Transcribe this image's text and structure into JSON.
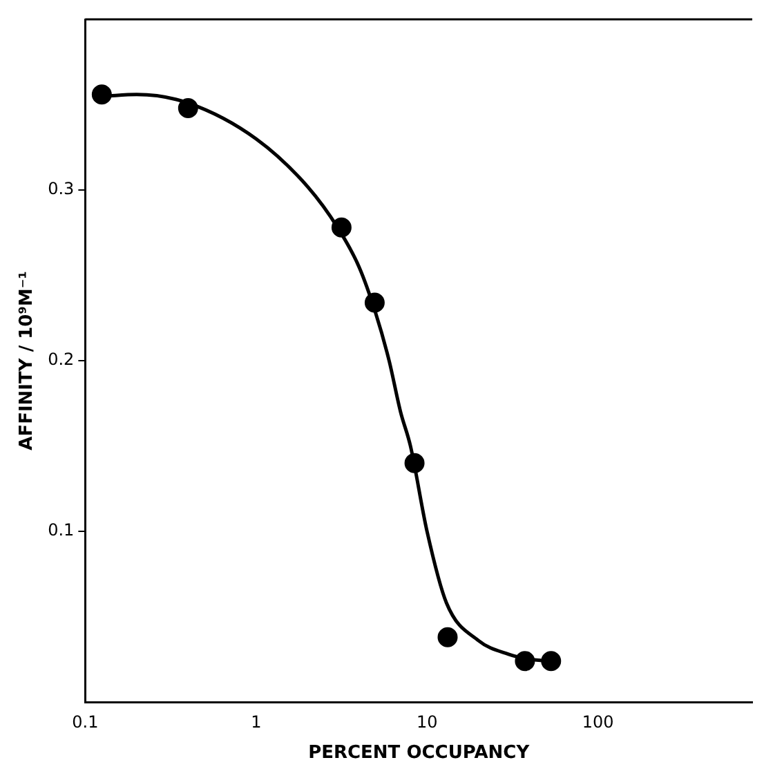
{
  "chart_data": {
    "type": "scatter",
    "xlabel": "PERCENT OCCUPANCY",
    "ylabel": "AFFINITY / 10⁹M⁻¹",
    "log": "x",
    "xlim": [
      0.1,
      800
    ],
    "xticks": [
      0.1,
      1,
      10,
      100
    ],
    "ylim": [
      0,
      0.4
    ],
    "yticks": [
      0.1,
      0.2,
      0.3
    ],
    "grid": false,
    "legend": false,
    "series": [
      {
        "type": "scatter",
        "color": "#000000",
        "marker": "circle",
        "x": [
          0.125,
          0.4,
          3.16,
          4.94,
          8.45,
          13.2,
          37.4,
          53.2
        ],
        "values": [
          0.356,
          0.348,
          0.278,
          0.234,
          0.14,
          0.038,
          0.024,
          0.024
        ]
      },
      {
        "type": "line",
        "color": "#000000",
        "marker": "none",
        "line_style": "solid",
        "x": [
          0.13,
          0.2,
          0.4,
          1,
          2,
          3,
          4,
          5,
          6,
          7,
          8,
          10,
          13,
          20,
          30,
          40,
          55
        ],
        "values": [
          0.355,
          0.356,
          0.351,
          0.33,
          0.302,
          0.278,
          0.255,
          0.228,
          0.2,
          0.17,
          0.15,
          0.1,
          0.058,
          0.036,
          0.028,
          0.025,
          0.024
        ]
      }
    ]
  }
}
